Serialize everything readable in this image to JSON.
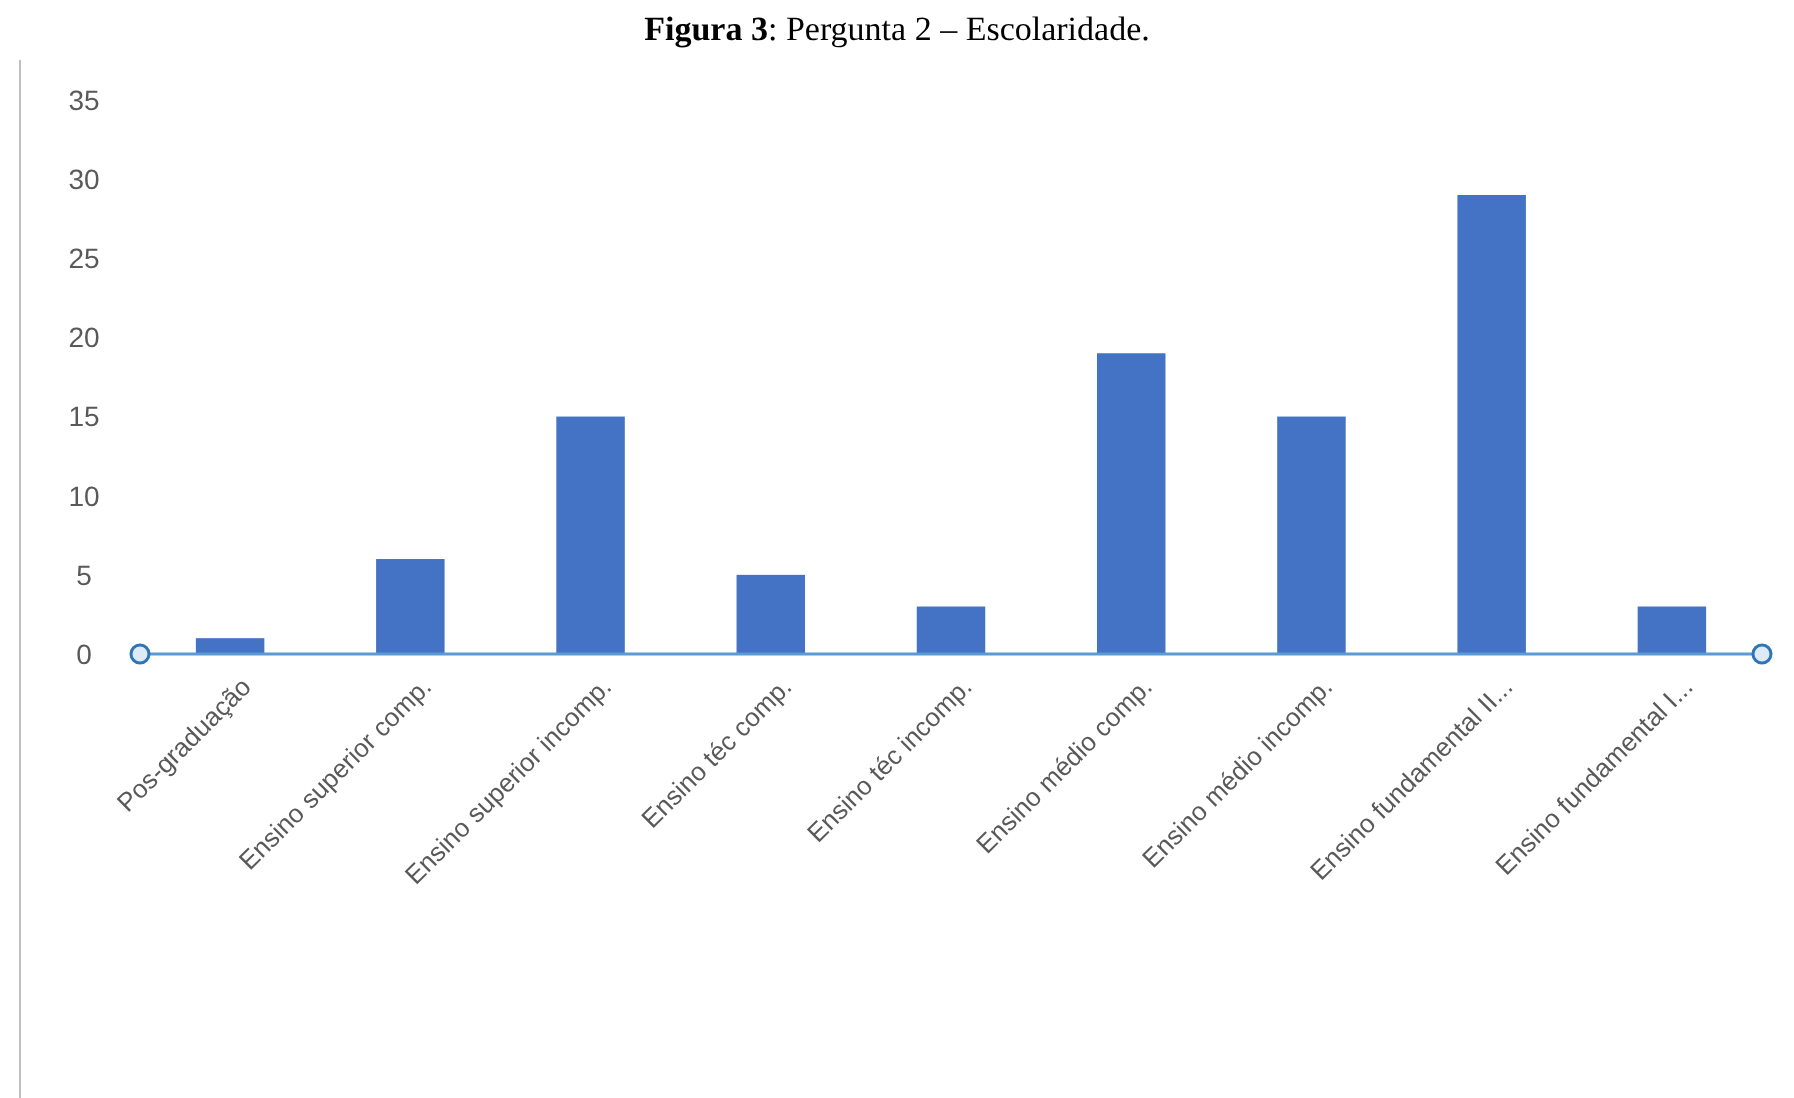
{
  "chart_data": {
    "type": "bar",
    "title": "Figura 3: Pergunta 2 – Escolaridade.",
    "categories": [
      "Pos-graduação",
      "Ensino superior comp.",
      "Ensino superior incomp.",
      "Ensino téc comp.",
      "Ensino téc incomp.",
      "Ensino médio comp.",
      "Ensino médio incomp.",
      "Ensino fundamental II...",
      "Ensino fundamental I..."
    ],
    "values": [
      1,
      6,
      15,
      5,
      3,
      19,
      15,
      29,
      3
    ],
    "color": "#4472c4",
    "ylim": [
      0,
      35
    ],
    "yticks": [
      0,
      5,
      10,
      15,
      20,
      25,
      30,
      35
    ]
  }
}
